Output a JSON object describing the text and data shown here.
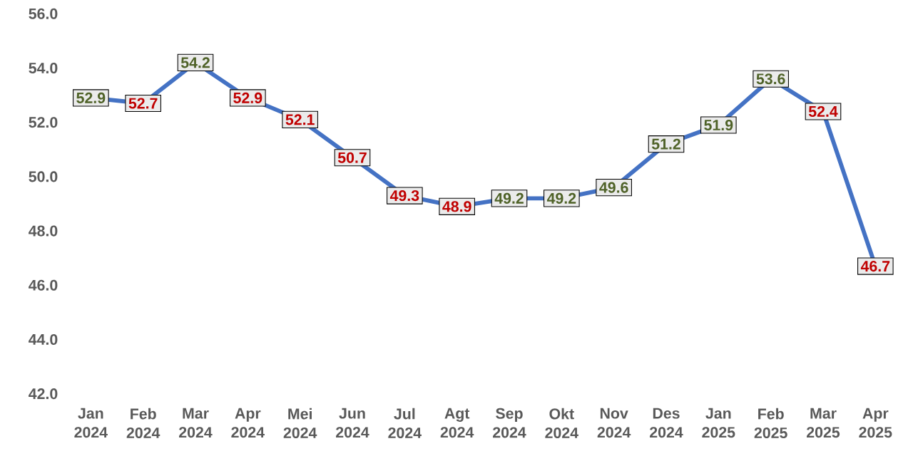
{
  "chart_data": {
    "type": "line",
    "categories": [
      "Jan 2024",
      "Feb 2024",
      "Mar 2024",
      "Apr 2024",
      "Mei 2024",
      "Jun 2024",
      "Jul 2024",
      "Agt 2024",
      "Sep 2024",
      "Okt 2024",
      "Nov 2024",
      "Des 2024",
      "Jan 2025",
      "Feb 2025",
      "Mar 2025",
      "Apr 2025"
    ],
    "values": [
      52.9,
      52.7,
      54.2,
      52.9,
      52.1,
      50.7,
      49.3,
      48.9,
      49.2,
      49.2,
      49.6,
      51.2,
      51.9,
      53.6,
      52.4,
      46.7
    ],
    "value_labels": [
      "52.9",
      "52.7",
      "54.2",
      "52.9",
      "52.1",
      "50.7",
      "49.3",
      "48.9",
      "49.2",
      "49.2",
      "49.6",
      "51.2",
      "51.9",
      "53.6",
      "52.4",
      "46.7"
    ],
    "color": "#4472c4",
    "ylim": [
      42,
      56
    ],
    "yticks": [
      {
        "value": 42,
        "label": "42.0"
      },
      {
        "value": 44,
        "label": "44.0"
      },
      {
        "value": 46,
        "label": "46.0"
      },
      {
        "value": 48,
        "label": "48.0"
      },
      {
        "value": 50,
        "label": "50.0"
      },
      {
        "value": 52,
        "label": "52.0"
      },
      {
        "value": 54,
        "label": "54.0"
      },
      {
        "value": 56,
        "label": "56.0"
      }
    ],
    "grid": false,
    "marker": "square",
    "line_style": "solid"
  }
}
